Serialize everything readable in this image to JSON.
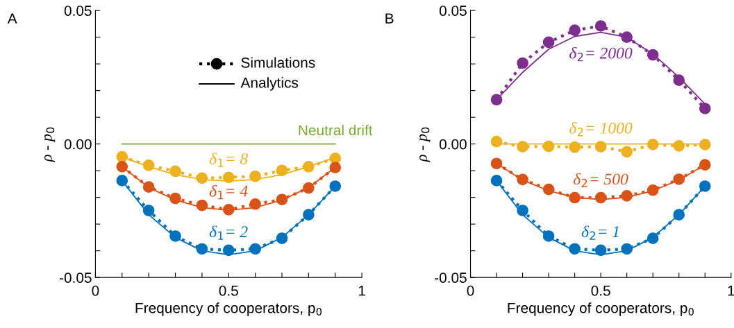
{
  "chart_data": [
    {
      "type": "line",
      "title": "A",
      "xlabel": "Frequency of cooperators, p$_{0}$",
      "ylabel": "ρ - p$_{0}$",
      "x": [
        0.1,
        0.2,
        0.3,
        0.4,
        0.5,
        0.6,
        0.7,
        0.8,
        0.9
      ],
      "xlim": [
        0,
        1
      ],
      "ylim": [
        -0.05,
        0.05
      ],
      "xticks": [
        0,
        {
          "value": 0.1,
          "label": null
        },
        {
          "value": 0.2,
          "label": null
        },
        {
          "value": 0.3,
          "label": null
        },
        {
          "value": 0.4,
          "label": null
        },
        0.5,
        {
          "value": 0.6,
          "label": null
        },
        {
          "value": 0.7,
          "label": null
        },
        {
          "value": 0.8,
          "label": null
        },
        {
          "value": 0.9,
          "label": null
        },
        1
      ],
      "yticks": [
        {
          "value": -0.05,
          "label": "-0.05"
        },
        {
          "value": -0.04,
          "label": null
        },
        {
          "value": -0.03,
          "label": null
        },
        {
          "value": -0.02,
          "label": null
        },
        {
          "value": -0.01,
          "label": null
        },
        {
          "value": 0,
          "label": "0.00"
        },
        {
          "value": 0.01,
          "label": null
        },
        {
          "value": 0.02,
          "label": null
        },
        {
          "value": 0.03,
          "label": null
        },
        {
          "value": 0.04,
          "label": null
        },
        {
          "value": 0.05,
          "label": "0.05"
        }
      ],
      "grid": false,
      "annotations": [
        "Simulations",
        "Analytics"
      ],
      "series": [
        {
          "name": "Neutral drift",
          "color": "#77ac30",
          "x": [
            0.1,
            0.9
          ],
          "values": [
            0,
            0
          ],
          "line_style": "solid",
          "marker": "none"
        },
        {
          "name": "δ$_{1}$= 8",
          "color": "#edb120",
          "values": [
            -0.0048,
            -0.008,
            -0.0102,
            -0.0128,
            -0.0125,
            -0.0121,
            -0.0099,
            -0.0085,
            -0.0054
          ],
          "line_style": "dotted",
          "marker": "circle"
        },
        {
          "color": "#edb120",
          "values": [
            -0.0048,
            -0.0085,
            -0.0115,
            -0.0133,
            -0.0139,
            -0.0133,
            -0.0115,
            -0.0085,
            -0.005
          ],
          "line_style": "solid",
          "marker": "none"
        },
        {
          "name": "δ$_{1}$= 4",
          "color": "#d95319",
          "values": [
            -0.0085,
            -0.0161,
            -0.0204,
            -0.023,
            -0.0246,
            -0.0225,
            -0.0208,
            -0.0165,
            -0.0088
          ],
          "line_style": "dotted",
          "marker": "circle"
        },
        {
          "color": "#d95319",
          "values": [
            -0.0085,
            -0.0163,
            -0.021,
            -0.0238,
            -0.0248,
            -0.0238,
            -0.021,
            -0.0163,
            -0.0088
          ],
          "line_style": "solid",
          "marker": "none"
        },
        {
          "name": "δ$_{1}$= 2",
          "color": "#0072bd",
          "values": [
            -0.0137,
            -0.0249,
            -0.0345,
            -0.0393,
            -0.0398,
            -0.0393,
            -0.0353,
            -0.0265,
            -0.0158
          ],
          "line_style": "dotted",
          "marker": "circle"
        },
        {
          "color": "#0072bd",
          "values": [
            -0.0137,
            -0.0265,
            -0.035,
            -0.04,
            -0.0415,
            -0.04,
            -0.035,
            -0.0265,
            -0.0158
          ],
          "line_style": "solid",
          "marker": "none"
        }
      ]
    },
    {
      "type": "line",
      "title": "B",
      "xlabel": "Frequency of cooperators, p$_{0}$",
      "ylabel": "ρ - p$_{0}$",
      "x": [
        0.1,
        0.2,
        0.3,
        0.4,
        0.5,
        0.6,
        0.7,
        0.8,
        0.9
      ],
      "xlim": [
        0,
        1
      ],
      "ylim": [
        -0.05,
        0.05
      ],
      "xticks": [
        0,
        {
          "value": 0.1,
          "label": null
        },
        {
          "value": 0.2,
          "label": null
        },
        {
          "value": 0.3,
          "label": null
        },
        {
          "value": 0.4,
          "label": null
        },
        0.5,
        {
          "value": 0.6,
          "label": null
        },
        {
          "value": 0.7,
          "label": null
        },
        {
          "value": 0.8,
          "label": null
        },
        {
          "value": 0.9,
          "label": null
        },
        1
      ],
      "yticks": [
        {
          "value": -0.05,
          "label": "-0.05"
        },
        {
          "value": -0.04,
          "label": null
        },
        {
          "value": -0.03,
          "label": null
        },
        {
          "value": -0.02,
          "label": null
        },
        {
          "value": -0.01,
          "label": null
        },
        {
          "value": 0,
          "label": "0.00"
        },
        {
          "value": 0.01,
          "label": null
        },
        {
          "value": 0.02,
          "label": null
        },
        {
          "value": 0.03,
          "label": null
        },
        {
          "value": 0.04,
          "label": null
        },
        {
          "value": 0.05,
          "label": "0.05"
        }
      ],
      "grid": false,
      "series": [
        {
          "name": "δ$_{2}$= 2000",
          "color": "#7e2f8e",
          "values": [
            0.0166,
            0.0303,
            0.0381,
            0.0426,
            0.0442,
            0.04,
            0.0334,
            0.0239,
            0.0133
          ],
          "line_style": "dotted",
          "marker": "circle"
        },
        {
          "color": "#7e2f8e",
          "values": [
            0.0166,
            0.0268,
            0.0355,
            0.0403,
            0.0418,
            0.04,
            0.0337,
            0.025,
            0.015
          ],
          "line_style": "solid",
          "marker": "none"
        },
        {
          "name": "δ$_{2}$= 1000",
          "color": "#edb120",
          "values": [
            0.0009,
            -0.001,
            -0.0009,
            -0.0012,
            -0.001,
            -0.0029,
            -0.0002,
            -0.0007,
            -0.0002
          ],
          "line_style": "dotted",
          "marker": "circle"
        },
        {
          "color": "#edb120",
          "values": [
            0,
            0,
            0,
            0,
            0,
            0,
            0,
            0,
            0
          ],
          "line_style": "solid",
          "marker": "none"
        },
        {
          "name": "δ$_{2}$= 500",
          "color": "#d95319",
          "values": [
            -0.0073,
            -0.0133,
            -0.017,
            -0.0201,
            -0.0201,
            -0.0194,
            -0.0173,
            -0.0132,
            -0.0078
          ],
          "line_style": "dotted",
          "marker": "circle"
        },
        {
          "color": "#d95319",
          "values": [
            -0.0073,
            -0.0135,
            -0.0175,
            -0.02,
            -0.0208,
            -0.02,
            -0.0175,
            -0.0135,
            -0.0078
          ],
          "line_style": "solid",
          "marker": "none"
        },
        {
          "name": "δ$_{2}$= 1",
          "color": "#0072bd",
          "values": [
            -0.0137,
            -0.0249,
            -0.0345,
            -0.0393,
            -0.0398,
            -0.0393,
            -0.0353,
            -0.0265,
            -0.0158
          ],
          "line_style": "dotted",
          "marker": "circle"
        },
        {
          "color": "#0072bd",
          "values": [
            -0.0137,
            -0.0265,
            -0.035,
            -0.04,
            -0.0415,
            -0.04,
            -0.035,
            -0.0265,
            -0.0158
          ],
          "line_style": "solid",
          "marker": "none"
        }
      ]
    }
  ]
}
